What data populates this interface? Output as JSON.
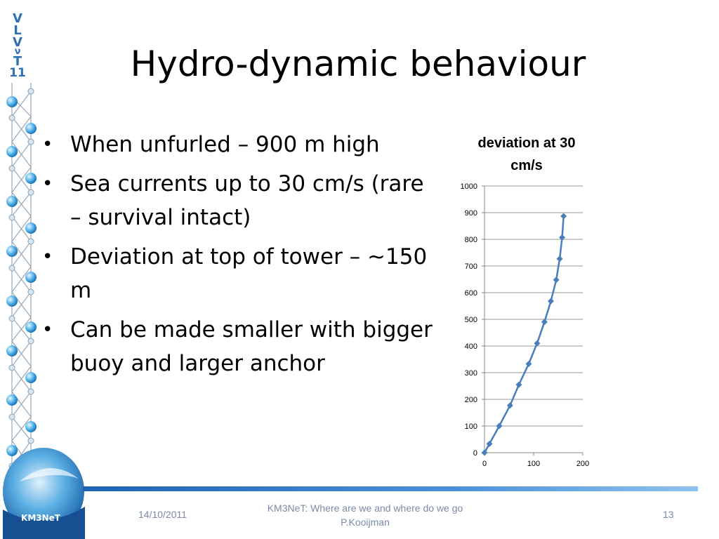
{
  "slide": {
    "title": "Hydro-dynamic behaviour",
    "bullets": [
      "When unfurled – 900 m high",
      "Sea currents up to 30 cm/s (rare – survival intact)",
      "Deviation at top of tower – ~150 m",
      "Can be made smaller with bigger buoy and larger anchor"
    ]
  },
  "branding": {
    "vlvnt_letters": [
      "V",
      "L",
      "V",
      "ν",
      "T",
      "11"
    ],
    "km3net_label": "KM3NeT",
    "accent_color": "#2e6fb6"
  },
  "footer": {
    "date": "14/10/2011",
    "center_line1": "KM3NeT: Where are we and where do we go",
    "center_line2": "P.Kooijman",
    "page_number": "13"
  },
  "chart_data": {
    "type": "scatter",
    "title": "deviation at 30 cm/s",
    "xlabel": "",
    "ylabel": "",
    "xlim": [
      0,
      200
    ],
    "ylim": [
      0,
      1000
    ],
    "x_ticks": [
      "0",
      "100",
      "200"
    ],
    "y_ticks": [
      "0",
      "100",
      "200",
      "300",
      "400",
      "500",
      "600",
      "700",
      "800",
      "900",
      "1000"
    ],
    "grid": "horizontal",
    "series": [
      {
        "color": "#4a7ebb",
        "points": [
          [
            0,
            0
          ],
          [
            10,
            33
          ],
          [
            30,
            100
          ],
          [
            52,
            177
          ],
          [
            70,
            255
          ],
          [
            90,
            333
          ],
          [
            107,
            410
          ],
          [
            122,
            490
          ],
          [
            135,
            568
          ],
          [
            146,
            648
          ],
          [
            153,
            727
          ],
          [
            158,
            807
          ],
          [
            161,
            887
          ]
        ]
      }
    ]
  }
}
